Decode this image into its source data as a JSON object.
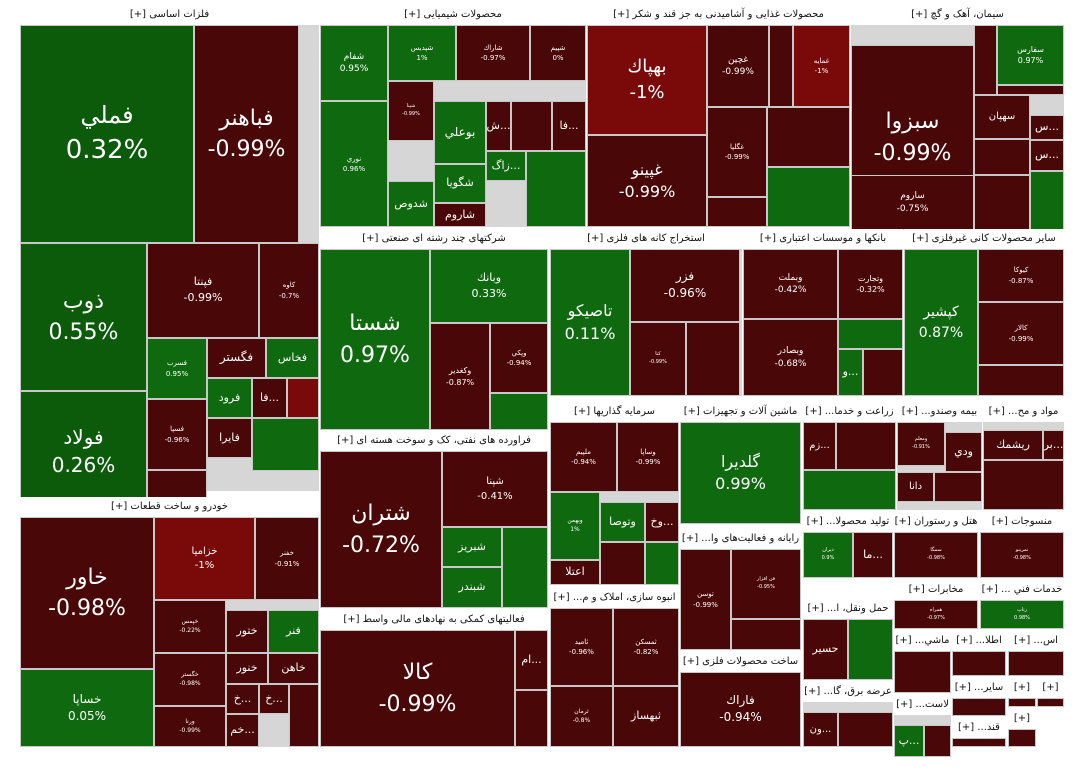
{
  "colors": {
    "dark_green": "#0b5b0b",
    "green": "#0f6a0f",
    "dark_red": "#4a0707",
    "red": "#7a0a0a",
    "border": "#c8c8c8"
  },
  "sectors": [
    {
      "id": "s1",
      "title": "فلزات اساسی [+]",
      "tiles": [
        {
          "name": "فملي",
          "pct": "0.32%",
          "color": "#0b5b0b"
        },
        {
          "name": "فباهنر",
          "pct": "-0.99%",
          "color": "#4a0707"
        },
        {
          "name": "ذوب",
          "pct": "0.55%",
          "color": "#0b5b0b"
        },
        {
          "name": "فپنتا",
          "pct": "-0.99%",
          "color": "#4a0707"
        },
        {
          "name": "كاوه",
          "pct": "-0.7%",
          "color": "#4a0707"
        },
        {
          "name": "فولاد",
          "pct": "0.26%",
          "color": "#0b5b0b"
        },
        {
          "name": "فسرب",
          "pct": "0.95%",
          "color": "#0f6a0f"
        },
        {
          "name": "فگستر",
          "pct": "",
          "color": "#4a0707"
        },
        {
          "name": "فخاس",
          "pct": "",
          "color": "#0f6a0f"
        },
        {
          "name": "فرود",
          "pct": "",
          "color": "#0f6a0f"
        },
        {
          "name": "فا...",
          "pct": "",
          "color": "#4a0707"
        },
        {
          "name": "فايرا",
          "pct": "",
          "color": "#4a0707"
        },
        {
          "name": "فسپا",
          "pct": "-0.96%",
          "color": "#4a0707"
        }
      ]
    },
    {
      "id": "s2",
      "title": "محصولات شیمیایی [+]",
      "tiles": [
        {
          "name": "شفام",
          "pct": "0.95%",
          "color": "#0f6a0f"
        },
        {
          "name": "شپديس",
          "pct": "1%",
          "color": "#0f6a0f"
        },
        {
          "name": "شاراك",
          "pct": "-0.97%",
          "color": "#4a0707"
        },
        {
          "name": "شپيم",
          "pct": "0%",
          "color": "#4a0707"
        },
        {
          "name": "نوري",
          "pct": "0.96%",
          "color": "#0f6a0f"
        },
        {
          "name": "شپنا",
          "pct": "-0.99%",
          "color": "#4a0707"
        },
        {
          "name": "بوعلي",
          "pct": "",
          "color": "#0f6a0f"
        },
        {
          "name": "ش...",
          "pct": "",
          "color": "#4a0707"
        },
        {
          "name": "فا...",
          "pct": "",
          "color": "#4a0707"
        },
        {
          "name": "شگويا",
          "pct": "",
          "color": "#0f6a0f"
        },
        {
          "name": "زاگ...",
          "pct": "",
          "color": "#0f6a0f"
        },
        {
          "name": "شدوص",
          "pct": "",
          "color": "#0f6a0f"
        },
        {
          "name": "شاروم",
          "pct": "",
          "color": "#4a0707"
        }
      ]
    },
    {
      "id": "s3",
      "title": "محصولات غذایی و آشامیدنی به جز قند و شکر [+]",
      "tiles": [
        {
          "name": "بهپاك",
          "pct": "-1%",
          "color": "#7a0a0a"
        },
        {
          "name": "غچين",
          "pct": "-0.99%",
          "color": "#4a0707"
        },
        {
          "name": "غمايه",
          "pct": "-1%",
          "color": "#7a0a0a"
        },
        {
          "name": "غپينو",
          "pct": "-0.99%",
          "color": "#4a0707"
        },
        {
          "name": "غگلپا",
          "pct": "-0.99%",
          "color": "#4a0707"
        }
      ]
    },
    {
      "id": "s4",
      "title": "سیمان، آهک و گچ [+]",
      "tiles": [
        {
          "name": "سبزوا",
          "pct": "-0.99%",
          "color": "#4a0707"
        },
        {
          "name": "سفارس",
          "pct": "0.97%",
          "color": "#0f6a0f"
        },
        {
          "name": "سهپان",
          "pct": "",
          "color": "#4a0707"
        },
        {
          "name": "س...",
          "pct": "",
          "color": "#4a0707"
        },
        {
          "name": "س...",
          "pct": "",
          "color": "#4a0707"
        },
        {
          "name": "ساروم",
          "pct": "-0.75%",
          "color": "#4a0707"
        }
      ]
    },
    {
      "id": "s5",
      "title": "شرکتهای چند رشته ای صنعتی [+]",
      "tiles": [
        {
          "name": "شستا",
          "pct": "0.97%",
          "color": "#0f6a0f"
        },
        {
          "name": "وبانك",
          "pct": "0.33%",
          "color": "#0f6a0f"
        },
        {
          "name": "وكغدير",
          "pct": "-0.87%",
          "color": "#4a0707"
        },
        {
          "name": "وپكي",
          "pct": "-0.94%",
          "color": "#4a0707"
        }
      ]
    },
    {
      "id": "s6",
      "title": "استخراج کانه های فلزی [+]",
      "tiles": [
        {
          "name": "تاصيكو",
          "pct": "0.11%",
          "color": "#0f6a0f"
        },
        {
          "name": "فزر",
          "pct": "-0.96%",
          "color": "#4a0707"
        },
        {
          "name": "كنا",
          "pct": "-0.99%",
          "color": "#4a0707"
        }
      ]
    },
    {
      "id": "s7",
      "title": "بانکها و موسسات اعتباری [+]",
      "tiles": [
        {
          "name": "وبملت",
          "pct": "-0.42%",
          "color": "#4a0707"
        },
        {
          "name": "وتجارت",
          "pct": "-0.32%",
          "color": "#4a0707"
        },
        {
          "name": "وبصادر",
          "pct": "-0.68%",
          "color": "#4a0707"
        },
        {
          "name": "و...",
          "pct": "",
          "color": "#0f6a0f"
        }
      ]
    },
    {
      "id": "s8",
      "title": "سایر محصولات کانی غیرفلزی [+]",
      "tiles": [
        {
          "name": "كپشير",
          "pct": "0.87%",
          "color": "#0f6a0f"
        },
        {
          "name": "كيوكا",
          "pct": "-0.87%",
          "color": "#4a0707"
        },
        {
          "name": "كالار",
          "pct": "-0.99%",
          "color": "#4a0707"
        }
      ]
    },
    {
      "id": "s9",
      "title": "فراورده های نفتی، کک و سوخت هسته ای [+]",
      "tiles": [
        {
          "name": "شتران",
          "pct": "-0.72%",
          "color": "#4a0707"
        },
        {
          "name": "شپنا",
          "pct": "-0.41%",
          "color": "#4a0707"
        },
        {
          "name": "شبريز",
          "pct": "",
          "color": "#0f6a0f"
        },
        {
          "name": "شبندر",
          "pct": "",
          "color": "#0f6a0f"
        }
      ]
    },
    {
      "id": "s10",
      "title": "خودرو و ساخت قطعات [+]",
      "tiles": [
        {
          "name": "خاور",
          "pct": "-0.98%",
          "color": "#4a0707"
        },
        {
          "name": "خزاميا",
          "pct": "-1%",
          "color": "#7a0a0a"
        },
        {
          "name": "خفنر",
          "pct": "-0.91%",
          "color": "#4a0707"
        },
        {
          "name": "خساپا",
          "pct": "0.05%",
          "color": "#0f6a0f"
        },
        {
          "name": "خپمس",
          "pct": "-0.22%",
          "color": "#4a0707"
        },
        {
          "name": "ختور",
          "pct": "",
          "color": "#4a0707"
        },
        {
          "name": "فنر",
          "pct": "",
          "color": "#0f6a0f"
        },
        {
          "name": "خنور",
          "pct": "",
          "color": "#4a0707"
        },
        {
          "name": "خاهن",
          "pct": "",
          "color": "#4a0707"
        },
        {
          "name": "خگستر",
          "pct": "-0.98%",
          "color": "#4a0707"
        },
        {
          "name": "خ...",
          "pct": "",
          "color": "#4a0707"
        },
        {
          "name": "خ...",
          "pct": "",
          "color": "#4a0707"
        },
        {
          "name": "ورنا",
          "pct": "-0.99%",
          "color": "#4a0707"
        },
        {
          "name": "خم...",
          "pct": "",
          "color": "#4a0707"
        }
      ]
    },
    {
      "id": "s11",
      "title": "سرمایه گذاریها [+]",
      "tiles": [
        {
          "name": "ملپيم",
          "pct": "-0.94%",
          "color": "#4a0707"
        },
        {
          "name": "وساپا",
          "pct": "-0.99%",
          "color": "#4a0707"
        },
        {
          "name": "وبهمن",
          "pct": "1%",
          "color": "#0f6a0f"
        },
        {
          "name": "وتوصا",
          "pct": "",
          "color": "#0f6a0f"
        },
        {
          "name": "وخ...",
          "pct": "",
          "color": "#4a0707"
        },
        {
          "name": "اعتلا",
          "pct": "",
          "color": "#4a0707"
        }
      ]
    },
    {
      "id": "s12",
      "title": "ماشین آلات و تجهیزات [+]",
      "tiles": [
        {
          "name": "گلديرا",
          "pct": "0.99%",
          "color": "#0f6a0f"
        }
      ]
    },
    {
      "id": "s13",
      "title": "زراعت و خدما... [+]",
      "tiles": [
        {
          "name": "زم...",
          "pct": "",
          "color": "#4a0707"
        }
      ]
    },
    {
      "id": "s14",
      "title": "بیمه وصندو... [+]",
      "tiles": [
        {
          "name": "ومعلم",
          "pct": "-0.91%",
          "color": "#4a0707"
        },
        {
          "name": "ودي",
          "pct": "",
          "color": "#4a0707"
        },
        {
          "name": "دانا",
          "pct": "",
          "color": "#4a0707"
        }
      ]
    },
    {
      "id": "s15",
      "title": "مواد و مح... [+]",
      "tiles": [
        {
          "name": "ريشمك",
          "pct": "",
          "color": "#4a0707"
        },
        {
          "name": "بر...",
          "pct": "",
          "color": "#4a0707"
        }
      ]
    },
    {
      "id": "s16",
      "title": "فعالیتهای کمکی به نهادهای مالی واسط [+]",
      "tiles": [
        {
          "name": "كالا",
          "pct": "-0.99%",
          "color": "#4a0707"
        },
        {
          "name": "ام...",
          "pct": "",
          "color": "#4a0707"
        }
      ]
    },
    {
      "id": "s17",
      "title": "انبوه سازی، املاک و م... [+]",
      "tiles": [
        {
          "name": "ثاميد",
          "pct": "-0.96%",
          "color": "#4a0707"
        },
        {
          "name": "ثمسكن",
          "pct": "-0.82%",
          "color": "#4a0707"
        },
        {
          "name": "ثرمان",
          "pct": "-0.8%",
          "color": "#4a0707"
        },
        {
          "name": "ثبهساز",
          "pct": "",
          "color": "#4a0707"
        }
      ]
    },
    {
      "id": "s18",
      "title": "رایانه و فعالیت‌های وا... [+]",
      "tiles": [
        {
          "name": "توسن",
          "pct": "-0.99%",
          "color": "#4a0707"
        },
        {
          "name": "فن افزار",
          "pct": "-0.95%",
          "color": "#4a0707"
        }
      ]
    },
    {
      "id": "s19",
      "title": "تولید محصولا... [+]",
      "tiles": [
        {
          "name": "ديران",
          "pct": "0.9%",
          "color": "#0f6a0f"
        },
        {
          "name": "ما...",
          "pct": "",
          "color": "#4a0707"
        }
      ]
    },
    {
      "id": "s20",
      "title": "هتل و رستوران [+]",
      "tiles": [
        {
          "name": "سمگا",
          "pct": "-0.98%",
          "color": "#4a0707"
        }
      ]
    },
    {
      "id": "s21",
      "title": "منسوجات [+]",
      "tiles": [
        {
          "name": "نمرينو",
          "pct": "-0.98%",
          "color": "#4a0707"
        }
      ]
    },
    {
      "id": "s22",
      "title": "ساخت محصولات فلزی [+]",
      "tiles": [
        {
          "name": "فاراك",
          "pct": "-0.94%",
          "color": "#4a0707"
        }
      ]
    },
    {
      "id": "s23",
      "title": "حمل ونقل، ا... [+]",
      "tiles": [
        {
          "name": "حسير",
          "pct": "",
          "color": "#4a0707"
        }
      ]
    },
    {
      "id": "s24",
      "title": "مخابرات [+]",
      "tiles": [
        {
          "name": "همراه",
          "pct": "-0.97%",
          "color": "#4a0707"
        }
      ]
    },
    {
      "id": "s25",
      "title": "خدمات فني ... [+]",
      "tiles": [
        {
          "name": "رتاپ",
          "pct": "0.98%",
          "color": "#0f6a0f"
        }
      ]
    },
    {
      "id": "s26",
      "title": "عرضه برق، گا... [+]",
      "tiles": [
        {
          "name": "ون...",
          "pct": "",
          "color": "#4a0707"
        }
      ]
    },
    {
      "id": "s27",
      "title": "ماشي... [+]",
      "tiles": []
    },
    {
      "id": "s28",
      "title": "اطلا... [+]",
      "tiles": []
    },
    {
      "id": "s29",
      "title": "اس... [+]",
      "tiles": []
    },
    {
      "id": "s30",
      "title": "ساير... [+]",
      "tiles": []
    },
    {
      "id": "s31",
      "title": "لاست... [+]",
      "tiles": [
        {
          "name": "پ...",
          "pct": "",
          "color": "#0f6a0f"
        }
      ]
    },
    {
      "id": "s32",
      "title": "قند... [+]",
      "tiles": []
    },
    {
      "id": "s33",
      "title": "[+]",
      "tiles": []
    },
    {
      "id": "s34",
      "title": "[+]",
      "tiles": []
    },
    {
      "id": "s35",
      "title": "[+]",
      "tiles": []
    }
  ]
}
